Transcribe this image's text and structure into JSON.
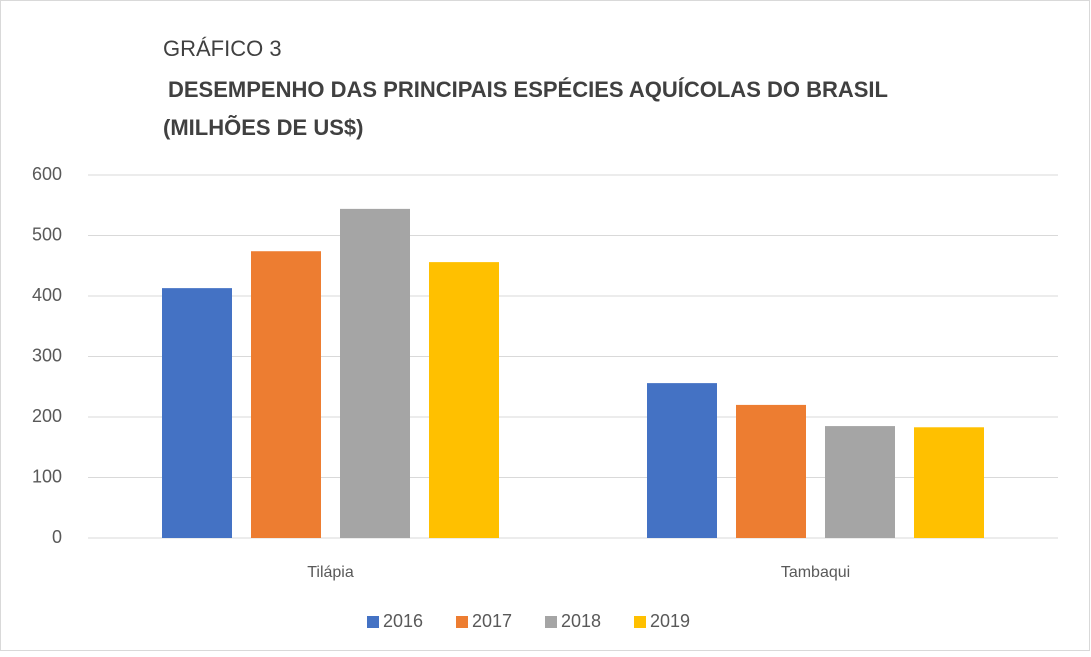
{
  "chart_data": {
    "type": "bar",
    "title": "GRÁFICO 3",
    "subtitle": [
      "DESEMPENHO DAS PRINCIPAIS ESPÉCIES AQUÍCOLAS DO BRASIL",
      "(MILHÕES DE US$)"
    ],
    "categories": [
      "Tilápia",
      "Tambaqui"
    ],
    "series": [
      {
        "name": "2016",
        "color": "#4472c4",
        "values": [
          413,
          256
        ]
      },
      {
        "name": "2017",
        "color": "#ed7d31",
        "values": [
          474,
          220
        ]
      },
      {
        "name": "2018",
        "color": "#a5a5a5",
        "values": [
          544,
          185
        ]
      },
      {
        "name": "2019",
        "color": "#ffc000",
        "values": [
          456,
          183
        ]
      }
    ],
    "ylim": [
      0,
      600
    ],
    "yticks": [
      0,
      100,
      200,
      300,
      400,
      500,
      600
    ],
    "grid": true,
    "legend": "bottom"
  }
}
